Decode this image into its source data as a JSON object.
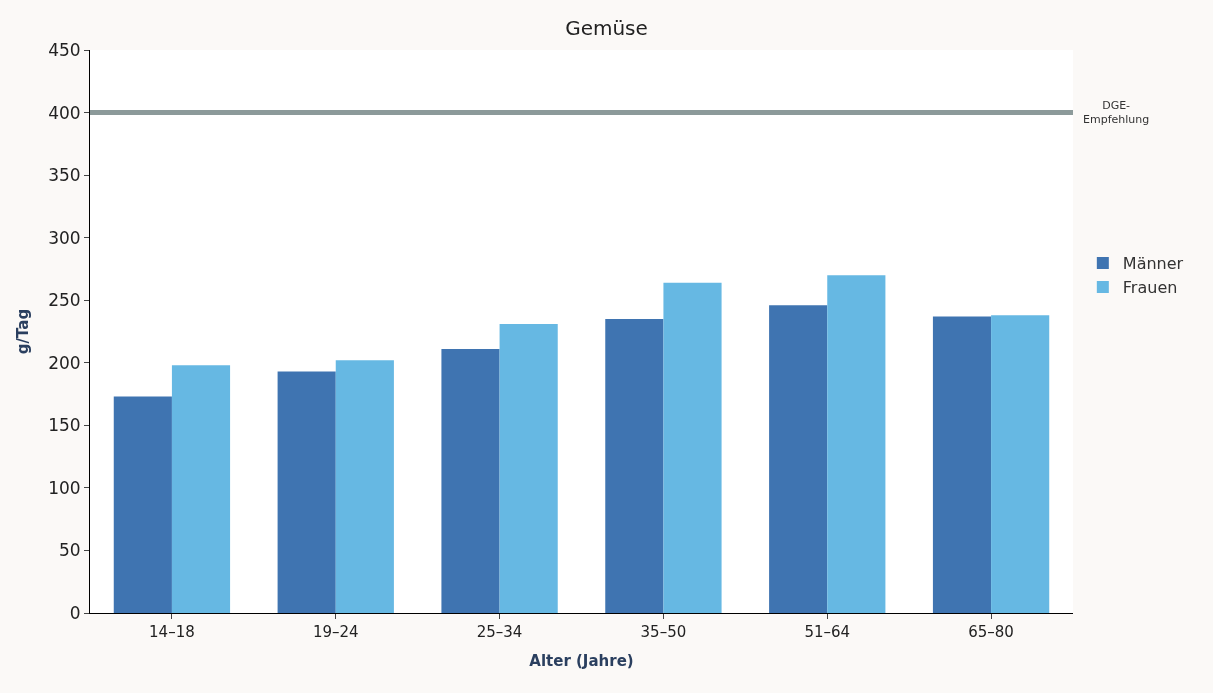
{
  "chart_data": {
    "type": "bar",
    "title": "Gemüse",
    "xlabel": "Alter (Jahre)",
    "ylabel": "g/Tag",
    "categories": [
      "14–18",
      "19–24",
      "25–34",
      "35–50",
      "51–64",
      "65–80"
    ],
    "series": [
      {
        "name": "Männer",
        "color": "#3f74b1",
        "values": [
          173,
          193,
          211,
          235,
          246,
          237
        ]
      },
      {
        "name": "Frauen",
        "color": "#66b8e3",
        "values": [
          198,
          202,
          231,
          264,
          270,
          238
        ]
      }
    ],
    "ylim": [
      0,
      450
    ],
    "yticks": [
      0,
      50,
      100,
      150,
      200,
      250,
      300,
      350,
      400,
      450
    ],
    "ref_lines": [
      {
        "axis": "y",
        "value": 400,
        "label": "DGE-\nEmpfehlung",
        "color": "#8c9a9a"
      }
    ],
    "legend": "right"
  }
}
